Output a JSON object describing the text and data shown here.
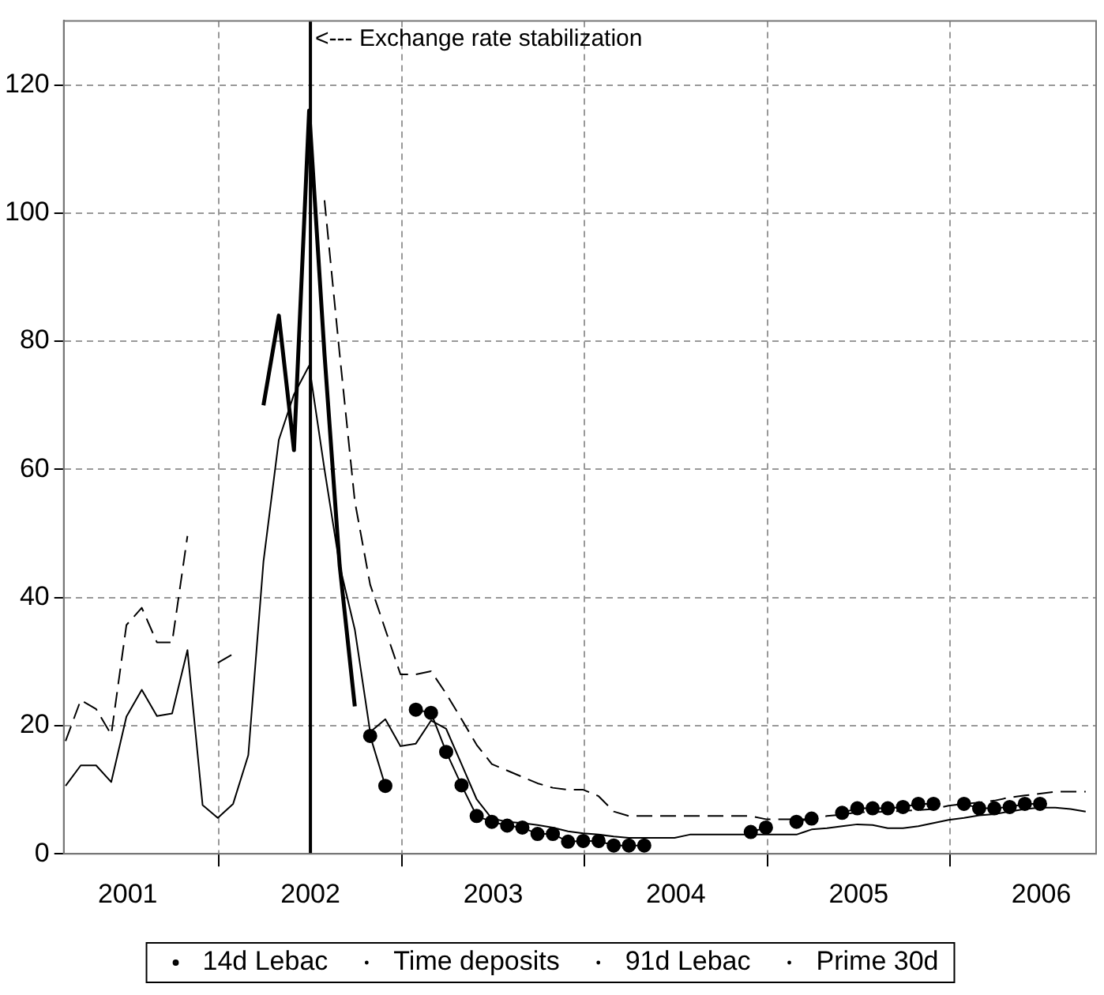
{
  "chart_data": {
    "type": "line",
    "x": [
      2001.16,
      2001.243,
      2001.327,
      2001.41,
      2001.493,
      2001.577,
      2001.66,
      2001.743,
      2001.827,
      2001.91,
      2001.993,
      2002.077,
      2002.16,
      2002.243,
      2002.327,
      2002.41,
      2002.493,
      2002.577,
      2002.66,
      2002.743,
      2002.827,
      2002.91,
      2002.993,
      2003.077,
      2003.16,
      2003.243,
      2003.327,
      2003.41,
      2003.493,
      2003.577,
      2003.66,
      2003.743,
      2003.827,
      2003.91,
      2003.993,
      2004.077,
      2004.16,
      2004.243,
      2004.327,
      2004.41,
      2004.493,
      2004.577,
      2004.66,
      2004.743,
      2004.827,
      2004.91,
      2004.993,
      2005.077,
      2005.16,
      2005.243,
      2005.327,
      2005.41,
      2005.493,
      2005.577,
      2005.66,
      2005.743,
      2005.827,
      2005.91,
      2005.993,
      2006.077,
      2006.16,
      2006.243,
      2006.327,
      2006.41,
      2006.493,
      2006.577,
      2006.66,
      2006.743
    ],
    "series": [
      {
        "name": "14d Lebac",
        "color": "#000000",
        "line_style": "solid",
        "marker": "none",
        "values": [
          null,
          null,
          null,
          null,
          null,
          null,
          null,
          null,
          null,
          null,
          null,
          null,
          null,
          70,
          84,
          63,
          116,
          78,
          45,
          23,
          null,
          null,
          null,
          null,
          null,
          null,
          null,
          null,
          null,
          null,
          null,
          null,
          null,
          null,
          null,
          null,
          null,
          null,
          null,
          null,
          null,
          null,
          null,
          null,
          null,
          null,
          null,
          null,
          null,
          null,
          null,
          null,
          null,
          null,
          null,
          null,
          null,
          null,
          null,
          null,
          null,
          null,
          null,
          null,
          null,
          null,
          null,
          null
        ]
      },
      {
        "name": "Time deposits",
        "color": "#000000",
        "line_style": "solid",
        "marker": "none",
        "values": [
          10.6,
          13.8,
          13.8,
          11.2,
          21.4,
          25.6,
          21.5,
          21.9,
          31.8,
          7.6,
          5.6,
          7.8,
          15.4,
          45.6,
          64.6,
          71.7,
          76.2,
          60,
          45,
          35,
          19,
          21,
          16.8,
          17.2,
          20.8,
          19.5,
          14,
          8.5,
          5.5,
          5,
          4.8,
          4.5,
          4.1,
          3.5,
          3.2,
          3,
          2.7,
          2.5,
          2.5,
          2.5,
          2.5,
          3,
          3,
          3,
          3,
          3,
          3,
          3,
          3,
          3.8,
          4,
          4.3,
          4.6,
          4.5,
          4,
          4,
          4.3,
          4.8,
          5.3,
          5.6,
          6,
          6.2,
          6.6,
          7,
          7.2,
          7.2,
          7,
          6.6
        ]
      },
      {
        "name": "91d Lebac",
        "color": "#000000",
        "line_style": "solid",
        "marker": "circle",
        "values": [
          null,
          null,
          null,
          null,
          null,
          null,
          null,
          null,
          null,
          null,
          null,
          null,
          null,
          null,
          null,
          null,
          null,
          null,
          null,
          null,
          18.4,
          10.6,
          null,
          22.5,
          22,
          15.9,
          10.7,
          5.9,
          5,
          4.4,
          4.1,
          3.1,
          3.1,
          1.9,
          2,
          2,
          1.3,
          1.3,
          1.3,
          null,
          null,
          null,
          null,
          null,
          null,
          3.4,
          4.1,
          null,
          5,
          5.5,
          null,
          6.4,
          7.1,
          7.1,
          7.1,
          7.3,
          7.8,
          7.8,
          null,
          7.8,
          7.1,
          7.1,
          7.3,
          7.8,
          7.8,
          null,
          null,
          null
        ]
      },
      {
        "name": "Prime 30d",
        "color": "#000000",
        "line_style": "dashed",
        "marker": "none",
        "values": [
          17.6,
          24,
          22.6,
          18.6,
          35.7,
          38.4,
          33,
          33,
          49.6,
          null,
          29.8,
          31.2,
          null,
          null,
          null,
          null,
          null,
          102,
          78,
          55,
          42,
          35,
          28,
          28,
          28.5,
          25,
          21,
          17,
          14,
          13,
          12,
          11,
          10.3,
          10,
          10,
          9,
          6.6,
          5.9,
          5.9,
          5.9,
          5.9,
          5.9,
          5.9,
          5.9,
          5.9,
          5.9,
          5.4,
          5.4,
          5.4,
          5.4,
          5.9,
          6.1,
          6.5,
          6.5,
          6.6,
          6.7,
          6.8,
          7,
          7.5,
          7.8,
          8,
          8.3,
          8.8,
          9.1,
          9.4,
          9.7,
          9.7,
          9.7
        ]
      }
    ],
    "xlim": [
      2001.15,
      2006.8
    ],
    "xticks": [
      {
        "value": 2001.5,
        "label": "2001"
      },
      {
        "value": 2002,
        "label": null
      },
      {
        "value": 2002.5,
        "label": "2002"
      },
      {
        "value": 2003,
        "label": null
      },
      {
        "value": 2003.5,
        "label": "2003"
      },
      {
        "value": 2004,
        "label": null
      },
      {
        "value": 2004.5,
        "label": "2004"
      },
      {
        "value": 2005,
        "label": null
      },
      {
        "value": 2005.5,
        "label": "2005"
      },
      {
        "value": 2006,
        "label": null
      },
      {
        "value": 2006.5,
        "label": "2006"
      }
    ],
    "ylim": [
      0,
      130
    ],
    "yticks": [
      0,
      20,
      40,
      60,
      80,
      100,
      120
    ],
    "grid": true,
    "legend": "bottom",
    "ref_lines": [
      {
        "axis": "x",
        "value": 2002.5,
        "label": "<--- Exchange rate stabilization",
        "color": "#000000"
      }
    ]
  }
}
